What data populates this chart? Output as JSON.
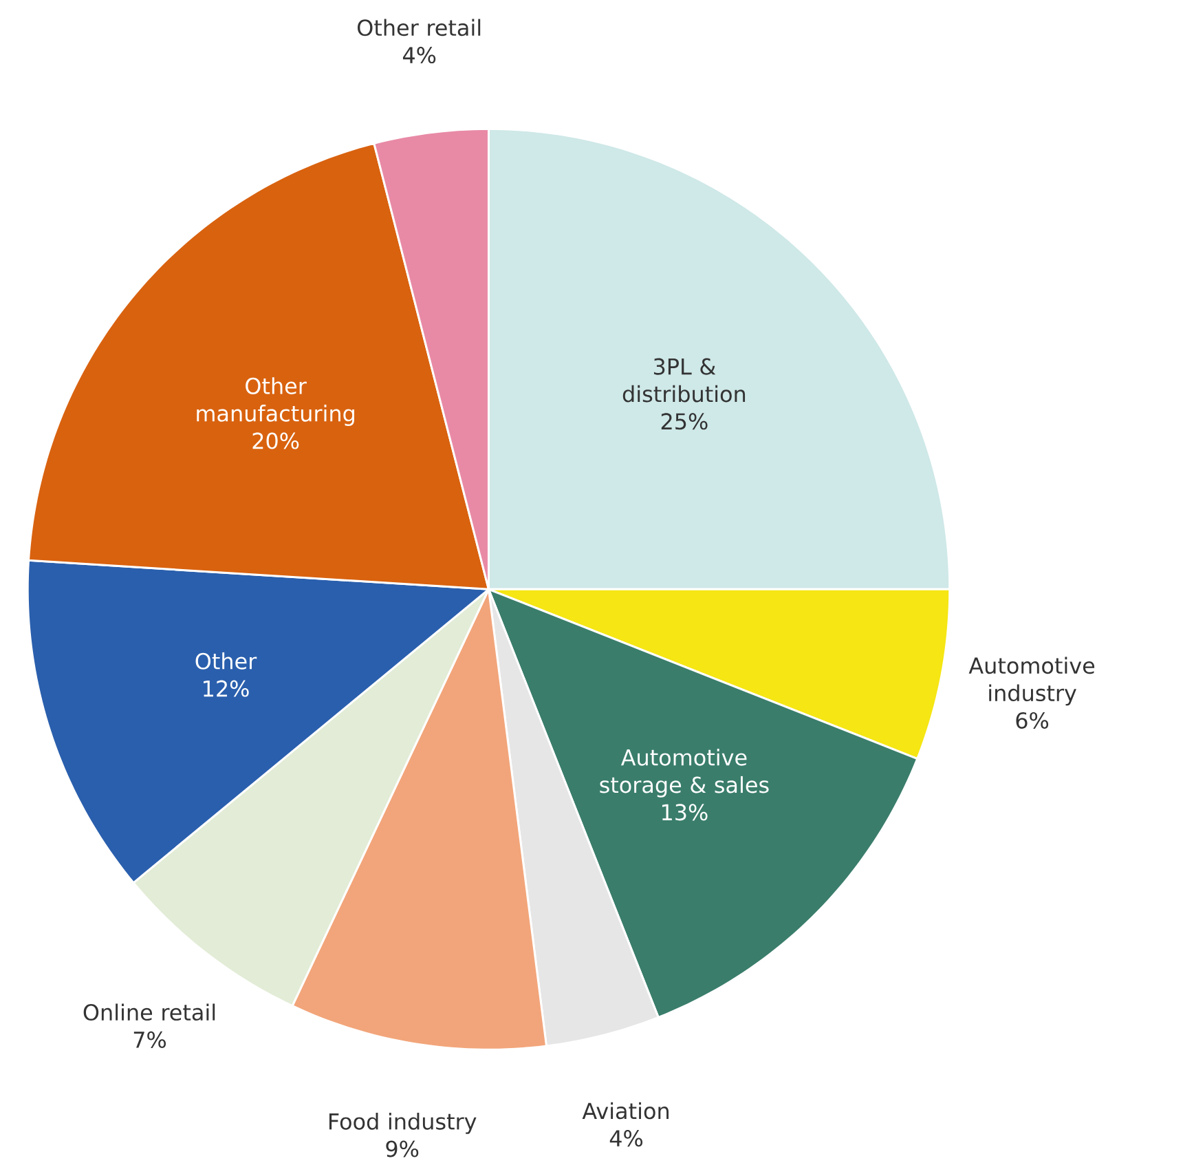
{
  "chart_data": {
    "type": "pie",
    "categories": [
      "3PL & distribution",
      "Automotive industry",
      "Automotive storage & sales",
      "Aviation",
      "Food industry",
      "Online retail",
      "Other",
      "Other manufacturing",
      "Other retail"
    ],
    "values": [
      25,
      6,
      13,
      4,
      9,
      7,
      12,
      20,
      4
    ],
    "value_labels": [
      "25%",
      "6%",
      "13%",
      "4%",
      "9%",
      "7%",
      "12%",
      "20%",
      "4%"
    ],
    "colors": [
      "#cfe8e8",
      "#f5e614",
      "#3a7d6b",
      "#e6e6e6",
      "#f2a57a",
      "#e2ecd6",
      "#2a5fad",
      "#d9620f",
      "#e88aa6"
    ]
  }
}
